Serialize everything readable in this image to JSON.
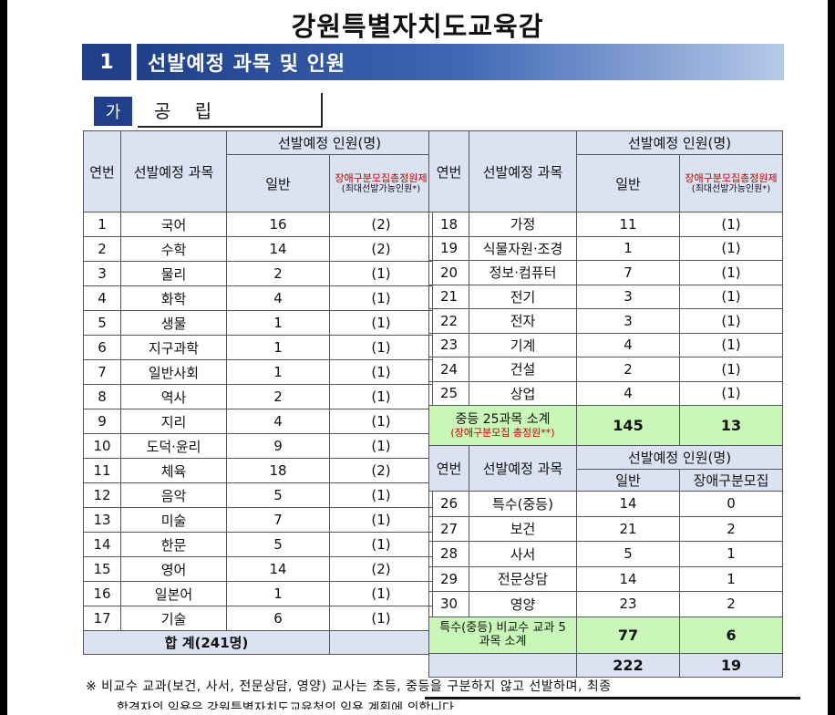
{
  "org_title": "강원특별자치도교육감",
  "section": {
    "number": "1",
    "title": "선발예정 과목 및 인원"
  },
  "subsection": {
    "marker": "가",
    "title": "공 립"
  },
  "headers": {
    "no": "연번",
    "subject": "선발예정 과목",
    "count_group": "선발예정 인원(명)",
    "general": "일반",
    "disabled_total": "장애구분모집총정원제",
    "disabled_max": "(최대선발가능인원*)",
    "disabled_plain": "장애구분모집"
  },
  "left_rows": [
    {
      "no": "1",
      "subject": "국어",
      "general": "16",
      "disabled": "(2)"
    },
    {
      "no": "2",
      "subject": "수학",
      "general": "14",
      "disabled": "(2)"
    },
    {
      "no": "3",
      "subject": "물리",
      "general": "2",
      "disabled": "(1)"
    },
    {
      "no": "4",
      "subject": "화학",
      "general": "4",
      "disabled": "(1)"
    },
    {
      "no": "5",
      "subject": "생물",
      "general": "1",
      "disabled": "(1)"
    },
    {
      "no": "6",
      "subject": "지구과학",
      "general": "1",
      "disabled": "(1)"
    },
    {
      "no": "7",
      "subject": "일반사회",
      "general": "1",
      "disabled": "(1)"
    },
    {
      "no": "8",
      "subject": "역사",
      "general": "2",
      "disabled": "(1)"
    },
    {
      "no": "9",
      "subject": "지리",
      "general": "4",
      "disabled": "(1)"
    },
    {
      "no": "10",
      "subject": "도덕·윤리",
      "general": "9",
      "disabled": "(1)"
    },
    {
      "no": "11",
      "subject": "체육",
      "general": "18",
      "disabled": "(2)"
    },
    {
      "no": "12",
      "subject": "음악",
      "general": "5",
      "disabled": "(1)"
    },
    {
      "no": "13",
      "subject": "미술",
      "general": "7",
      "disabled": "(1)"
    },
    {
      "no": "14",
      "subject": "한문",
      "general": "5",
      "disabled": "(1)"
    },
    {
      "no": "15",
      "subject": "영어",
      "general": "14",
      "disabled": "(2)"
    },
    {
      "no": "16",
      "subject": "일본어",
      "general": "1",
      "disabled": "(1)"
    },
    {
      "no": "17",
      "subject": "기술",
      "general": "6",
      "disabled": "(1)"
    }
  ],
  "right_rows": [
    {
      "no": "18",
      "subject": "가정",
      "general": "11",
      "disabled": "(1)"
    },
    {
      "no": "19",
      "subject": "식물자원·조경",
      "general": "1",
      "disabled": "(1)"
    },
    {
      "no": "20",
      "subject": "정보·컴퓨터",
      "general": "7",
      "disabled": "(1)"
    },
    {
      "no": "21",
      "subject": "전기",
      "general": "3",
      "disabled": "(1)"
    },
    {
      "no": "22",
      "subject": "전자",
      "general": "3",
      "disabled": "(1)"
    },
    {
      "no": "23",
      "subject": "기계",
      "general": "4",
      "disabled": "(1)"
    },
    {
      "no": "24",
      "subject": "건설",
      "general": "2",
      "disabled": "(1)"
    },
    {
      "no": "25",
      "subject": "상업",
      "general": "4",
      "disabled": "(1)"
    }
  ],
  "secondary_subtotal": {
    "label": "중등 25과목 소계",
    "sublabel": "(장애구분모집 총정원**)",
    "general": "145",
    "disabled": "13"
  },
  "special_rows": [
    {
      "no": "26",
      "subject": "특수(중등)",
      "general": "14",
      "disabled": "0"
    },
    {
      "no": "27",
      "subject": "보건",
      "general": "21",
      "disabled": "2"
    },
    {
      "no": "28",
      "subject": "사서",
      "general": "5",
      "disabled": "1"
    },
    {
      "no": "29",
      "subject": "전문상담",
      "general": "14",
      "disabled": "1"
    },
    {
      "no": "30",
      "subject": "영양",
      "general": "23",
      "disabled": "2"
    }
  ],
  "special_subtotal": {
    "label": "특수(중등) 비교수 교과 5과목 소계",
    "general": "77",
    "disabled": "6"
  },
  "grand_total": {
    "label": "합 계(241명)",
    "general": "222",
    "disabled": "19"
  },
  "note_line1": "※ 비교수 교과(보건, 사서, 전문상담, 영양) 교사는 초등, 중등을 구분하지 않고 선발하며, 최종",
  "note_line2": "합격자의 임용은 강원특별자치도교육청의 임용 계획에 의합니다."
}
